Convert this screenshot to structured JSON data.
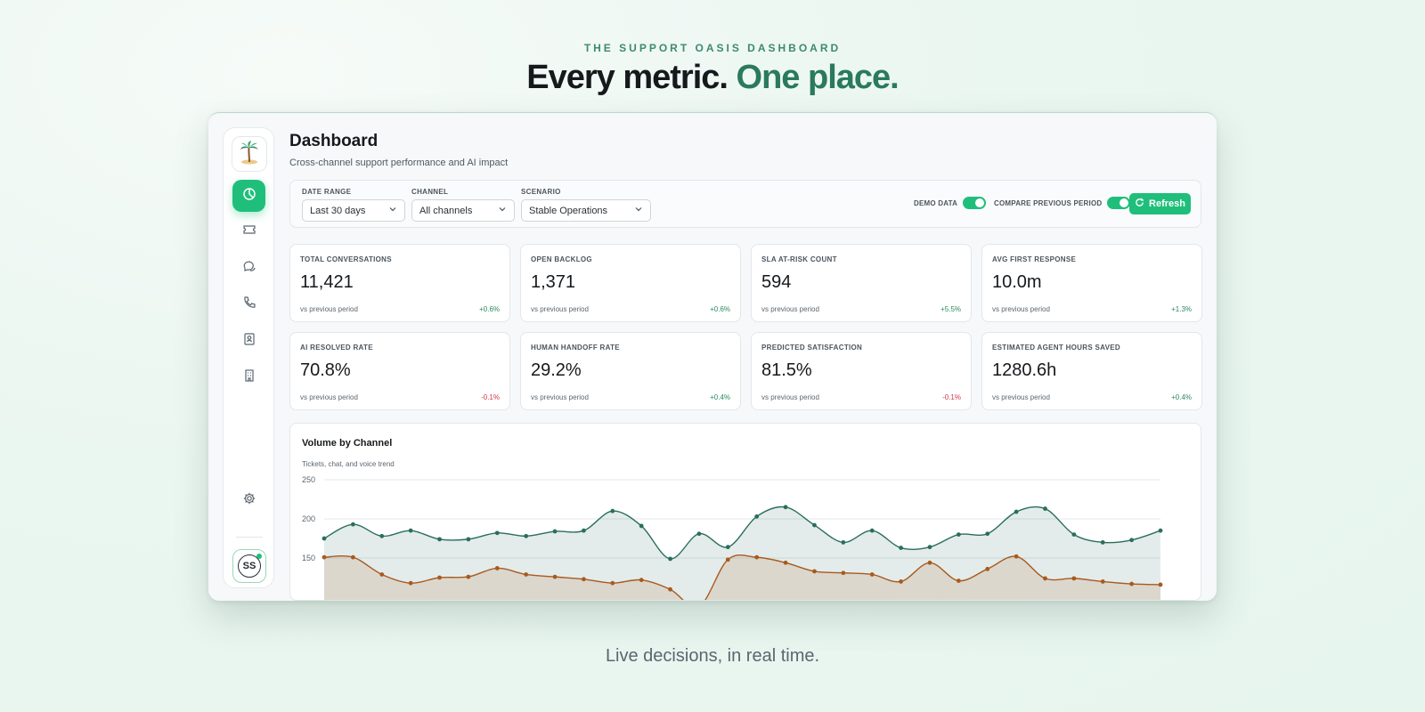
{
  "hero": {
    "eyebrow": "THE SUPPORT OASIS DASHBOARD",
    "headline_main": "Every metric.",
    "headline_accent": "One place.",
    "tagline": "Live decisions, in real time."
  },
  "sidebar": {
    "logo_icon": "palm-tree-icon",
    "items": [
      {
        "icon": "dashboard-pie-icon",
        "active": true
      },
      {
        "icon": "ticket-icon",
        "active": false
      },
      {
        "icon": "chat-bubbles-icon",
        "active": false
      },
      {
        "icon": "phone-icon",
        "active": false
      },
      {
        "icon": "contact-card-icon",
        "active": false
      },
      {
        "icon": "building-icon",
        "active": false
      }
    ],
    "settings_icon": "gear-icon",
    "avatar_initials": "SS"
  },
  "page": {
    "title": "Dashboard",
    "subtitle": "Cross-channel support performance and AI impact"
  },
  "filters": {
    "date_range": {
      "label": "DATE RANGE",
      "value": "Last 30 days"
    },
    "channel": {
      "label": "CHANNEL",
      "value": "All channels"
    },
    "scenario": {
      "label": "SCENARIO",
      "value": "Stable Operations"
    },
    "demo_data": {
      "label": "DEMO DATA",
      "on": true
    },
    "compare": {
      "label": "COMPARE PREVIOUS PERIOD",
      "on": true
    },
    "refresh_label": "Refresh"
  },
  "kpis": [
    {
      "label": "TOTAL CONVERSATIONS",
      "value": "11,421",
      "compare": "vs previous period",
      "delta": "+0.6%",
      "negative": false
    },
    {
      "label": "OPEN BACKLOG",
      "value": "1,371",
      "compare": "vs previous period",
      "delta": "+0.6%",
      "negative": false
    },
    {
      "label": "SLA AT-RISK COUNT",
      "value": "594",
      "compare": "vs previous period",
      "delta": "+5.5%",
      "negative": false
    },
    {
      "label": "AVG FIRST RESPONSE",
      "value": "10.0m",
      "compare": "vs previous period",
      "delta": "+1.3%",
      "negative": false
    },
    {
      "label": "AI RESOLVED RATE",
      "value": "70.8%",
      "compare": "vs previous period",
      "delta": "-0.1%",
      "negative": true
    },
    {
      "label": "HUMAN HANDOFF RATE",
      "value": "29.2%",
      "compare": "vs previous period",
      "delta": "+0.4%",
      "negative": false
    },
    {
      "label": "PREDICTED SATISFACTION",
      "value": "81.5%",
      "compare": "vs previous period",
      "delta": "-0.1%",
      "negative": true
    },
    {
      "label": "ESTIMATED AGENT HOURS SAVED",
      "value": "1280.6h",
      "compare": "vs previous period",
      "delta": "+0.4%",
      "negative": false
    }
  ],
  "colors": {
    "accent": "#1fbf7b",
    "series_primary": "#2a6e5c",
    "series_secondary": "#a85a1e",
    "negative": "#d0384a",
    "positive": "#2a8a5f"
  },
  "chart_data": {
    "type": "area",
    "title": "Volume by Channel",
    "subtitle": "Tickets, chat, and voice trend",
    "yticks": [
      250,
      200,
      150
    ],
    "ylim": [
      100,
      250
    ],
    "grid": true,
    "series": [
      {
        "values": [
          175,
          193,
          178,
          185,
          174,
          174,
          182,
          178,
          184,
          185,
          210,
          191,
          149,
          181,
          164,
          203,
          215,
          192,
          170,
          185,
          163,
          164,
          180,
          181,
          209,
          213,
          180,
          170,
          173,
          185
        ]
      },
      {
        "values": [
          151,
          151,
          129,
          118,
          125,
          126,
          137,
          129,
          126,
          123,
          118,
          122,
          110,
          88,
          148,
          151,
          144,
          133,
          131,
          129,
          120,
          144,
          121,
          136,
          152,
          124,
          124,
          120,
          117,
          116
        ]
      }
    ]
  }
}
